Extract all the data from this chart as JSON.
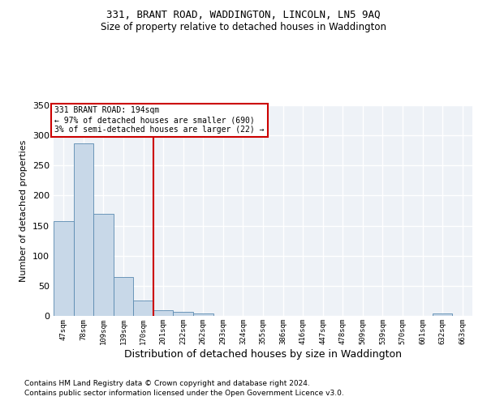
{
  "title1": "331, BRANT ROAD, WADDINGTON, LINCOLN, LN5 9AQ",
  "title2": "Size of property relative to detached houses in Waddington",
  "xlabel": "Distribution of detached houses by size in Waddington",
  "ylabel": "Number of detached properties",
  "footnote1": "Contains HM Land Registry data © Crown copyright and database right 2024.",
  "footnote2": "Contains public sector information licensed under the Open Government Licence v3.0.",
  "annotation_line1": "331 BRANT ROAD: 194sqm",
  "annotation_line2": "← 97% of detached houses are smaller (690)",
  "annotation_line3": "3% of semi-detached houses are larger (22) →",
  "bar_labels": [
    "47sqm",
    "78sqm",
    "109sqm",
    "139sqm",
    "170sqm",
    "201sqm",
    "232sqm",
    "262sqm",
    "293sqm",
    "324sqm",
    "355sqm",
    "386sqm",
    "416sqm",
    "447sqm",
    "478sqm",
    "509sqm",
    "539sqm",
    "570sqm",
    "601sqm",
    "632sqm",
    "663sqm"
  ],
  "bar_values": [
    157,
    287,
    170,
    65,
    26,
    10,
    7,
    4,
    0,
    0,
    0,
    0,
    0,
    0,
    0,
    0,
    0,
    0,
    0,
    4,
    0
  ],
  "bar_color": "#c8d8e8",
  "bar_edge_color": "#5a8ab0",
  "bg_color": "#eef2f7",
  "grid_color": "#ffffff",
  "vline_x": 4.5,
  "vline_color": "#cc0000",
  "annotation_box_color": "#cc0000",
  "ylim": [
    0,
    350
  ],
  "yticks": [
    0,
    50,
    100,
    150,
    200,
    250,
    300,
    350
  ]
}
